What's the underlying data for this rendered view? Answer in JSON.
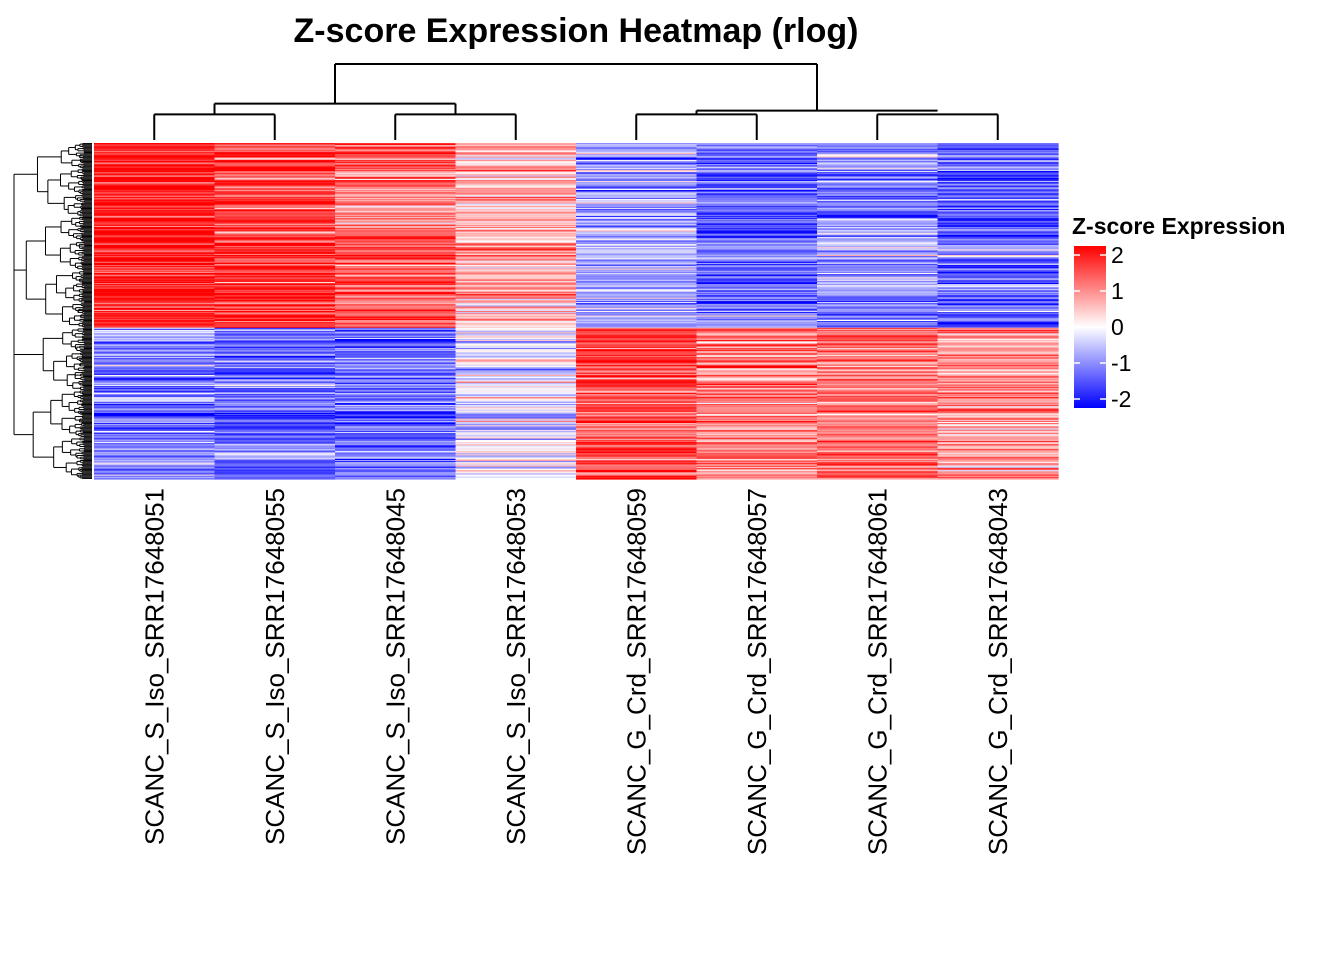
{
  "chart_data": {
    "type": "heatmap",
    "title": "Z-score Expression Heatmap (rlog)",
    "columns": [
      "SCANC_S_Iso_SRR17648051",
      "SCANC_S_Iso_SRR17648055",
      "SCANC_S_Iso_SRR17648045",
      "SCANC_S_Iso_SRR17648053",
      "SCANC_G_Crd_SRR17648059",
      "SCANC_G_Crd_SRR17648057",
      "SCANC_G_Crd_SRR17648061",
      "SCANC_G_Crd_SRR17648043"
    ],
    "row_count": 300,
    "row_clusters": [
      {
        "name": "upper",
        "fraction": 0.55,
        "column_means": [
          1.8,
          1.5,
          1.2,
          0.6,
          -0.7,
          -1.1,
          -0.9,
          -1.2
        ]
      },
      {
        "name": "lower",
        "fraction": 0.45,
        "column_means": [
          -1.0,
          -1.1,
          -1.1,
          -0.3,
          1.4,
          1.0,
          1.1,
          0.8
        ]
      }
    ],
    "legend": {
      "title": "Z-score Expression",
      "ticks": [
        "2",
        "1",
        "0",
        "-1",
        "-2"
      ],
      "range": [
        -2,
        2
      ],
      "colors": {
        "low": "#0000ff",
        "mid": "#ffffff",
        "high": "#ff0000"
      }
    },
    "column_dendrogram": {
      "merges": [
        {
          "left": "SCANC_S_Iso_SRR17648051",
          "right": "SCANC_S_Iso_SRR17648055",
          "height": 0.3
        },
        {
          "left": "SCANC_S_Iso_SRR17648045",
          "right": "SCANC_S_Iso_SRR17648053",
          "height": 0.3
        },
        {
          "left": "SCANC_G_Crd_SRR17648059",
          "right": "SCANC_G_Crd_SRR17648057",
          "height": 0.3
        },
        {
          "left": "SCANC_G_Crd_SRR17648061",
          "right": "SCANC_G_Crd_SRR17648043",
          "height": 0.3
        },
        {
          "left": "S_Iso pair A",
          "right": "S_Iso pair B",
          "height": 0.45
        },
        {
          "left": "G_Crd pair A",
          "right": "G_Crd pair B",
          "height": 0.45
        },
        {
          "left": "S_Iso group",
          "right": "G_Crd group",
          "height": 1.0
        }
      ]
    }
  }
}
